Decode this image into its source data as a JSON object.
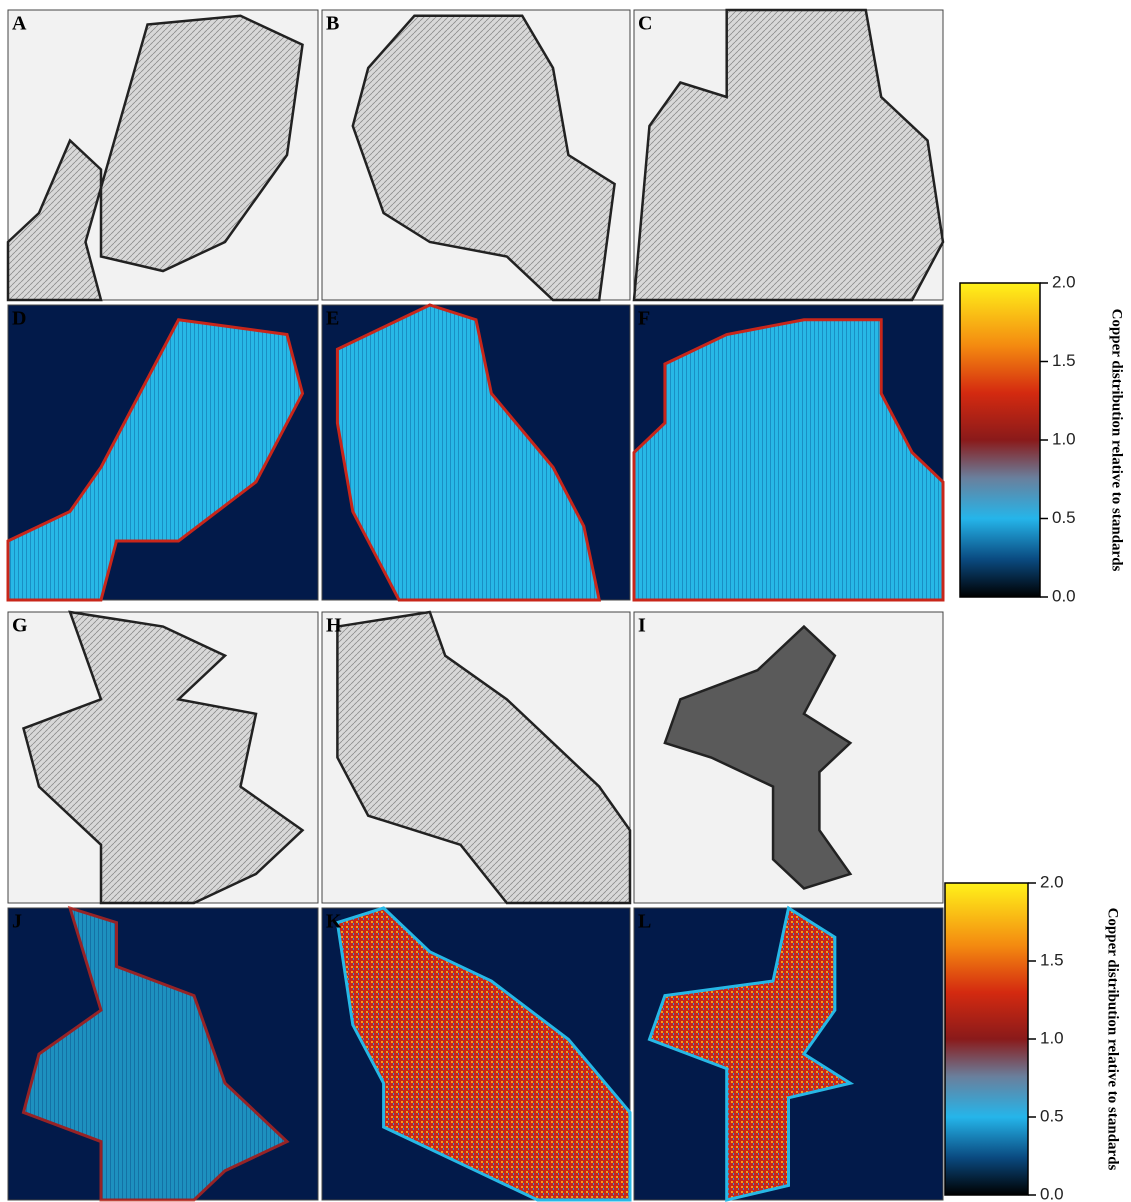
{
  "panels": [
    {
      "label": "A"
    },
    {
      "label": "B"
    },
    {
      "label": "C"
    },
    {
      "label": "D"
    },
    {
      "label": "E"
    },
    {
      "label": "F"
    },
    {
      "label": "G"
    },
    {
      "label": "H"
    },
    {
      "label": "I"
    },
    {
      "label": "J"
    },
    {
      "label": "K"
    },
    {
      "label": "L"
    }
  ],
  "colorbars": [
    {
      "title": "Copper distribution relative to standards",
      "lim": [
        0,
        2
      ],
      "ticks": [
        {
          "value": 0,
          "label": "0.0"
        },
        {
          "value": 0.5,
          "label": "0.5"
        },
        {
          "value": 1,
          "label": "1.0"
        },
        {
          "value": 1.5,
          "label": "1.5"
        },
        {
          "value": 2,
          "label": "2.0"
        }
      ]
    },
    {
      "title": "Copper distribution relative to standards",
      "lim": [
        0,
        2
      ],
      "ticks": [
        {
          "value": 0,
          "label": "0.0"
        },
        {
          "value": 0.5,
          "label": "0.5"
        },
        {
          "value": 1,
          "label": "1.0"
        },
        {
          "value": 1.5,
          "label": "1.5"
        },
        {
          "value": 2,
          "label": "2.0"
        }
      ]
    }
  ]
}
